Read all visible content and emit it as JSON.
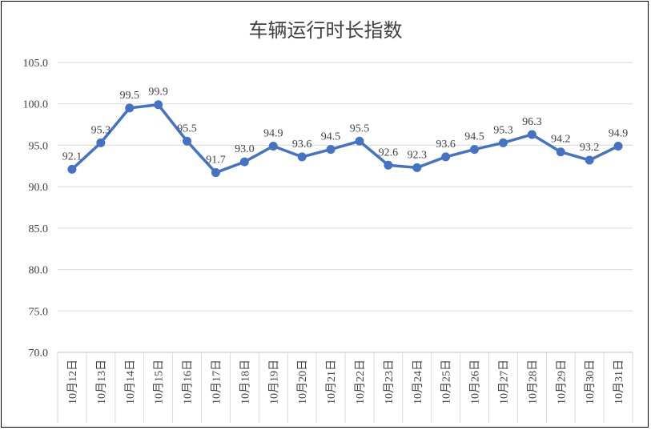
{
  "chart_data": {
    "type": "line",
    "title": "车辆运行时长指数",
    "xlabel": "",
    "ylabel": "",
    "ylim": [
      70.0,
      105.0
    ],
    "yticks": [
      "70.0",
      "75.0",
      "80.0",
      "85.0",
      "90.0",
      "95.0",
      "100.0",
      "105.0"
    ],
    "grid": true,
    "legend": "none",
    "categories": [
      "10月12日",
      "10月13日",
      "10月14日",
      "10月15日",
      "10月16日",
      "10月17日",
      "10月18日",
      "10月19日",
      "10月20日",
      "10月21日",
      "10月22日",
      "10月23日",
      "10月24日",
      "10月25日",
      "10月26日",
      "10月27日",
      "10月28日",
      "10月29日",
      "10月30日",
      "10月31日"
    ],
    "values": [
      92.1,
      95.3,
      99.5,
      99.9,
      95.5,
      91.7,
      93.0,
      94.9,
      93.6,
      94.5,
      95.5,
      92.6,
      92.3,
      93.6,
      94.5,
      95.3,
      96.3,
      94.2,
      93.2,
      94.9
    ],
    "labels": [
      "92.1",
      "95.3",
      "99.5",
      "99.9",
      "95.5",
      "91.7",
      "93.0",
      "94.9",
      "93.6",
      "94.5",
      "95.5",
      "92.6",
      "92.3",
      "93.6",
      "94.5",
      "95.3",
      "96.3",
      "94.2",
      "93.2",
      "94.9"
    ],
    "colors": {
      "line": "#4472C4",
      "grid": "#D9D9D9",
      "axis": "#BFBFBF",
      "text": "#404040"
    }
  }
}
